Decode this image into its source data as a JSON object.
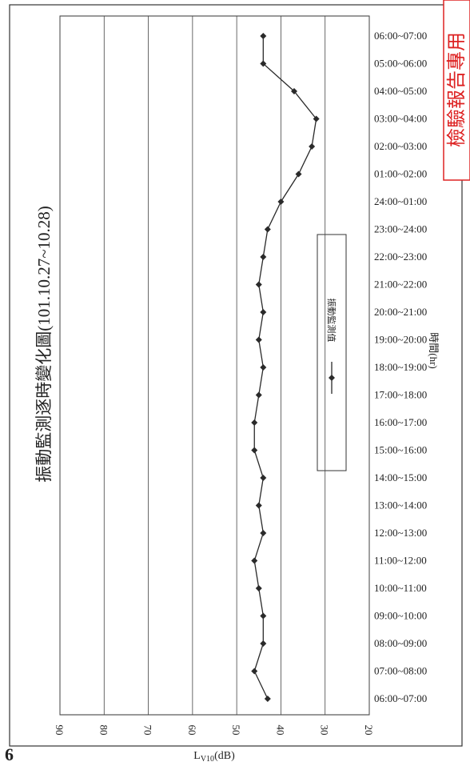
{
  "page_number": "6",
  "stamp": "檢驗報告專用",
  "chart_data": {
    "type": "line",
    "title": "振動監測逐時變化圖(101.10.27~10.28)",
    "x_label": "時間(hr)",
    "y_label": {
      "main": "L",
      "sub": "V10",
      "unit": "(dB)"
    },
    "categories": [
      "06:00~07:00",
      "07:00~08:00",
      "08:00~09:00",
      "09:00~10:00",
      "10:00~11:00",
      "11:00~12:00",
      "12:00~13:00",
      "13:00~14:00",
      "14:00~15:00",
      "15:00~16:00",
      "16:00~17:00",
      "17:00~18:00",
      "18:00~19:00",
      "19:00~20:00",
      "20:00~21:00",
      "21:00~22:00",
      "22:00~23:00",
      "23:00~24:00",
      "24:00~01:00",
      "01:00~02:00",
      "02:00~03:00",
      "03:00~04:00",
      "04:00~05:00",
      "05:00~06:00",
      "06:00~07:00"
    ],
    "series": [
      {
        "name": "振動監測值",
        "color": "#2a2a2a",
        "values": [
          43,
          46,
          44,
          44,
          45,
          46,
          44,
          45,
          44,
          46,
          46,
          45,
          44,
          45,
          44,
          45,
          44,
          43,
          40,
          36,
          33,
          32,
          37,
          44,
          44
        ]
      }
    ],
    "ylim": [
      20,
      90
    ],
    "yticks": [
      90,
      80,
      70,
      60,
      50,
      40,
      30,
      20
    ],
    "grid": true
  }
}
